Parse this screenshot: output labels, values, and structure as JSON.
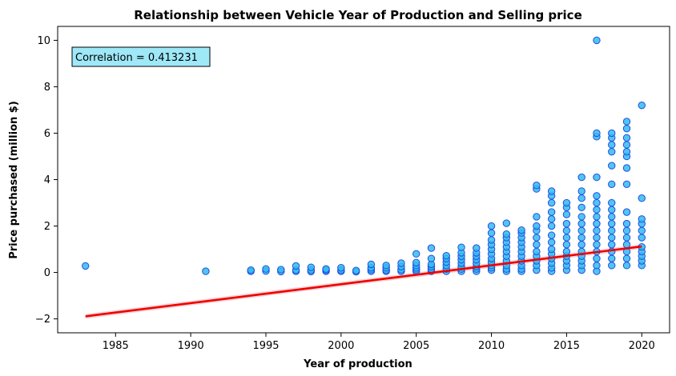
{
  "chart_data": {
    "type": "scatter",
    "title": "Relationship between Vehicle Year of Production and Selling price",
    "xlabel": "Year of production",
    "ylabel": "Price purchased (million $)",
    "xlim": [
      1981.15,
      2021.85
    ],
    "ylim": [
      -2.6,
      10.6
    ],
    "xticks": [
      "1985",
      "1990",
      "1995",
      "2000",
      "2005",
      "2010",
      "2015",
      "2020"
    ],
    "yticks": [
      "−2",
      "0",
      "2",
      "4",
      "6",
      "8",
      "10"
    ],
    "grid": false,
    "annotation": "Correlation = 0.413231",
    "colors": {
      "point_fill": "#33bbee",
      "point_edge": "#1f4fe0",
      "regression_line": "#ee0000",
      "confidence_band": "#f4a0a0",
      "annotation_fill": "#9fe8f8"
    },
    "regression_line": {
      "x": [
        1983,
        2020
      ],
      "y": [
        -1.89,
        1.12
      ]
    },
    "points": [
      {
        "x": 1983,
        "y": 0.28
      },
      {
        "x": 1991,
        "y": 0.05
      },
      {
        "x": 1994,
        "y": 0.05
      },
      {
        "x": 1994,
        "y": 0.1
      },
      {
        "x": 1995,
        "y": 0.06
      },
      {
        "x": 1995,
        "y": 0.15
      },
      {
        "x": 1996,
        "y": 0.04
      },
      {
        "x": 1996,
        "y": 0.12
      },
      {
        "x": 1997,
        "y": 0.05
      },
      {
        "x": 1997,
        "y": 0.1
      },
      {
        "x": 1997,
        "y": 0.28
      },
      {
        "x": 1998,
        "y": 0.04
      },
      {
        "x": 1998,
        "y": 0.1
      },
      {
        "x": 1998,
        "y": 0.22
      },
      {
        "x": 1999,
        "y": 0.05
      },
      {
        "x": 1999,
        "y": 0.1
      },
      {
        "x": 1999,
        "y": 0.15
      },
      {
        "x": 2000,
        "y": 0.05
      },
      {
        "x": 2000,
        "y": 0.1
      },
      {
        "x": 2000,
        "y": 0.2
      },
      {
        "x": 2001,
        "y": 0.03
      },
      {
        "x": 2001,
        "y": 0.08
      },
      {
        "x": 2002,
        "y": 0.05
      },
      {
        "x": 2002,
        "y": 0.12
      },
      {
        "x": 2002,
        "y": 0.2
      },
      {
        "x": 2002,
        "y": 0.35
      },
      {
        "x": 2003,
        "y": 0.05
      },
      {
        "x": 2003,
        "y": 0.1
      },
      {
        "x": 2003,
        "y": 0.2
      },
      {
        "x": 2003,
        "y": 0.3
      },
      {
        "x": 2004,
        "y": 0.05
      },
      {
        "x": 2004,
        "y": 0.12
      },
      {
        "x": 2004,
        "y": 0.25
      },
      {
        "x": 2004,
        "y": 0.4
      },
      {
        "x": 2005,
        "y": 0.05
      },
      {
        "x": 2005,
        "y": 0.12
      },
      {
        "x": 2005,
        "y": 0.2
      },
      {
        "x": 2005,
        "y": 0.3
      },
      {
        "x": 2005,
        "y": 0.42
      },
      {
        "x": 2005,
        "y": 0.8
      },
      {
        "x": 2006,
        "y": 0.05
      },
      {
        "x": 2006,
        "y": 0.15
      },
      {
        "x": 2006,
        "y": 0.25
      },
      {
        "x": 2006,
        "y": 0.35
      },
      {
        "x": 2006,
        "y": 0.6
      },
      {
        "x": 2006,
        "y": 1.05
      },
      {
        "x": 2007,
        "y": 0.05
      },
      {
        "x": 2007,
        "y": 0.15
      },
      {
        "x": 2007,
        "y": 0.3
      },
      {
        "x": 2007,
        "y": 0.45
      },
      {
        "x": 2007,
        "y": 0.6
      },
      {
        "x": 2007,
        "y": 0.72
      },
      {
        "x": 2008,
        "y": 0.05
      },
      {
        "x": 2008,
        "y": 0.15
      },
      {
        "x": 2008,
        "y": 0.25
      },
      {
        "x": 2008,
        "y": 0.4
      },
      {
        "x": 2008,
        "y": 0.55
      },
      {
        "x": 2008,
        "y": 0.7
      },
      {
        "x": 2008,
        "y": 0.85
      },
      {
        "x": 2008,
        "y": 1.08
      },
      {
        "x": 2009,
        "y": 0.05
      },
      {
        "x": 2009,
        "y": 0.15
      },
      {
        "x": 2009,
        "y": 0.25
      },
      {
        "x": 2009,
        "y": 0.4
      },
      {
        "x": 2009,
        "y": 0.55
      },
      {
        "x": 2009,
        "y": 0.7
      },
      {
        "x": 2009,
        "y": 0.85
      },
      {
        "x": 2009,
        "y": 1.05
      },
      {
        "x": 2010,
        "y": 0.1
      },
      {
        "x": 2010,
        "y": 0.2
      },
      {
        "x": 2010,
        "y": 0.3
      },
      {
        "x": 2010,
        "y": 0.45
      },
      {
        "x": 2010,
        "y": 0.6
      },
      {
        "x": 2010,
        "y": 0.8
      },
      {
        "x": 2010,
        "y": 1.0
      },
      {
        "x": 2010,
        "y": 1.2
      },
      {
        "x": 2010,
        "y": 1.4
      },
      {
        "x": 2010,
        "y": 1.7
      },
      {
        "x": 2010,
        "y": 2.0
      },
      {
        "x": 2011,
        "y": 0.05
      },
      {
        "x": 2011,
        "y": 0.15
      },
      {
        "x": 2011,
        "y": 0.3
      },
      {
        "x": 2011,
        "y": 0.5
      },
      {
        "x": 2011,
        "y": 0.7
      },
      {
        "x": 2011,
        "y": 0.9
      },
      {
        "x": 2011,
        "y": 1.1
      },
      {
        "x": 2011,
        "y": 1.3
      },
      {
        "x": 2011,
        "y": 1.5
      },
      {
        "x": 2011,
        "y": 1.65
      },
      {
        "x": 2011,
        "y": 2.12
      },
      {
        "x": 2012,
        "y": 0.05
      },
      {
        "x": 2012,
        "y": 0.15
      },
      {
        "x": 2012,
        "y": 0.3
      },
      {
        "x": 2012,
        "y": 0.5
      },
      {
        "x": 2012,
        "y": 0.7
      },
      {
        "x": 2012,
        "y": 0.9
      },
      {
        "x": 2012,
        "y": 1.1
      },
      {
        "x": 2012,
        "y": 1.3
      },
      {
        "x": 2012,
        "y": 1.5
      },
      {
        "x": 2012,
        "y": 1.7
      },
      {
        "x": 2012,
        "y": 1.82
      },
      {
        "x": 2013,
        "y": 0.1
      },
      {
        "x": 2013,
        "y": 0.3
      },
      {
        "x": 2013,
        "y": 0.5
      },
      {
        "x": 2013,
        "y": 0.7
      },
      {
        "x": 2013,
        "y": 0.9
      },
      {
        "x": 2013,
        "y": 1.2
      },
      {
        "x": 2013,
        "y": 1.5
      },
      {
        "x": 2013,
        "y": 1.8
      },
      {
        "x": 2013,
        "y": 2.0
      },
      {
        "x": 2013,
        "y": 2.4
      },
      {
        "x": 2013,
        "y": 3.6
      },
      {
        "x": 2013,
        "y": 3.75
      },
      {
        "x": 2014,
        "y": 0.05
      },
      {
        "x": 2014,
        "y": 0.2
      },
      {
        "x": 2014,
        "y": 0.4
      },
      {
        "x": 2014,
        "y": 0.6
      },
      {
        "x": 2014,
        "y": 0.8
      },
      {
        "x": 2014,
        "y": 1.0
      },
      {
        "x": 2014,
        "y": 1.3
      },
      {
        "x": 2014,
        "y": 1.6
      },
      {
        "x": 2014,
        "y": 2.0
      },
      {
        "x": 2014,
        "y": 2.3
      },
      {
        "x": 2014,
        "y": 2.6
      },
      {
        "x": 2014,
        "y": 3.0
      },
      {
        "x": 2014,
        "y": 3.3
      },
      {
        "x": 2014,
        "y": 3.5
      },
      {
        "x": 2015,
        "y": 0.1
      },
      {
        "x": 2015,
        "y": 0.3
      },
      {
        "x": 2015,
        "y": 0.5
      },
      {
        "x": 2015,
        "y": 0.7
      },
      {
        "x": 2015,
        "y": 0.9
      },
      {
        "x": 2015,
        "y": 1.2
      },
      {
        "x": 2015,
        "y": 1.5
      },
      {
        "x": 2015,
        "y": 1.8
      },
      {
        "x": 2015,
        "y": 2.1
      },
      {
        "x": 2015,
        "y": 2.5
      },
      {
        "x": 2015,
        "y": 2.8
      },
      {
        "x": 2015,
        "y": 3.0
      },
      {
        "x": 2016,
        "y": 0.1
      },
      {
        "x": 2016,
        "y": 0.3
      },
      {
        "x": 2016,
        "y": 0.5
      },
      {
        "x": 2016,
        "y": 0.7
      },
      {
        "x": 2016,
        "y": 0.9
      },
      {
        "x": 2016,
        "y": 1.2
      },
      {
        "x": 2016,
        "y": 1.5
      },
      {
        "x": 2016,
        "y": 1.8
      },
      {
        "x": 2016,
        "y": 2.1
      },
      {
        "x": 2016,
        "y": 2.4
      },
      {
        "x": 2016,
        "y": 2.8
      },
      {
        "x": 2016,
        "y": 3.2
      },
      {
        "x": 2016,
        "y": 3.5
      },
      {
        "x": 2016,
        "y": 4.1
      },
      {
        "x": 2017,
        "y": 0.05
      },
      {
        "x": 2017,
        "y": 0.3
      },
      {
        "x": 2017,
        "y": 0.6
      },
      {
        "x": 2017,
        "y": 0.9
      },
      {
        "x": 2017,
        "y": 1.2
      },
      {
        "x": 2017,
        "y": 1.5
      },
      {
        "x": 2017,
        "y": 1.8
      },
      {
        "x": 2017,
        "y": 2.1
      },
      {
        "x": 2017,
        "y": 2.4
      },
      {
        "x": 2017,
        "y": 2.7
      },
      {
        "x": 2017,
        "y": 3.0
      },
      {
        "x": 2017,
        "y": 3.3
      },
      {
        "x": 2017,
        "y": 4.1
      },
      {
        "x": 2017,
        "y": 5.85
      },
      {
        "x": 2017,
        "y": 6.0
      },
      {
        "x": 2017,
        "y": 10.0
      },
      {
        "x": 2018,
        "y": 0.3
      },
      {
        "x": 2018,
        "y": 0.6
      },
      {
        "x": 2018,
        "y": 0.9
      },
      {
        "x": 2018,
        "y": 1.2
      },
      {
        "x": 2018,
        "y": 1.5
      },
      {
        "x": 2018,
        "y": 1.8
      },
      {
        "x": 2018,
        "y": 2.1
      },
      {
        "x": 2018,
        "y": 2.4
      },
      {
        "x": 2018,
        "y": 2.7
      },
      {
        "x": 2018,
        "y": 3.0
      },
      {
        "x": 2018,
        "y": 3.8
      },
      {
        "x": 2018,
        "y": 4.6
      },
      {
        "x": 2018,
        "y": 5.2
      },
      {
        "x": 2018,
        "y": 5.5
      },
      {
        "x": 2018,
        "y": 5.8
      },
      {
        "x": 2018,
        "y": 6.0
      },
      {
        "x": 2019,
        "y": 0.3
      },
      {
        "x": 2019,
        "y": 0.6
      },
      {
        "x": 2019,
        "y": 0.9
      },
      {
        "x": 2019,
        "y": 1.2
      },
      {
        "x": 2019,
        "y": 1.5
      },
      {
        "x": 2019,
        "y": 1.8
      },
      {
        "x": 2019,
        "y": 2.1
      },
      {
        "x": 2019,
        "y": 2.6
      },
      {
        "x": 2019,
        "y": 3.8
      },
      {
        "x": 2019,
        "y": 4.5
      },
      {
        "x": 2019,
        "y": 5.0
      },
      {
        "x": 2019,
        "y": 5.2
      },
      {
        "x": 2019,
        "y": 5.5
      },
      {
        "x": 2019,
        "y": 5.8
      },
      {
        "x": 2019,
        "y": 6.2
      },
      {
        "x": 2019,
        "y": 6.5
      },
      {
        "x": 2020,
        "y": 0.3
      },
      {
        "x": 2020,
        "y": 0.5
      },
      {
        "x": 2020,
        "y": 0.7
      },
      {
        "x": 2020,
        "y": 0.9
      },
      {
        "x": 2020,
        "y": 1.1
      },
      {
        "x": 2020,
        "y": 1.5
      },
      {
        "x": 2020,
        "y": 1.8
      },
      {
        "x": 2020,
        "y": 2.1
      },
      {
        "x": 2020,
        "y": 2.3
      },
      {
        "x": 2020,
        "y": 3.2
      },
      {
        "x": 2020,
        "y": 7.2
      }
    ]
  }
}
